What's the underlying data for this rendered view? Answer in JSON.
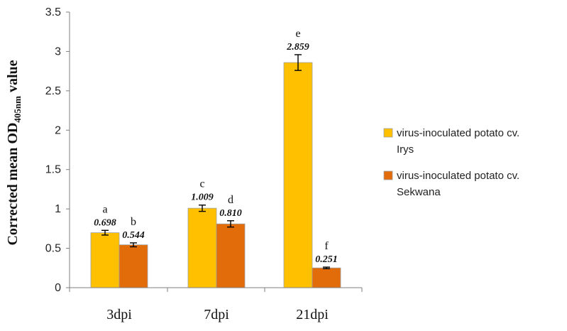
{
  "chart_data": {
    "type": "bar",
    "title": "",
    "xlabel": "",
    "ylabel": {
      "prefix": "Corrected mean OD",
      "subscript": "405nm",
      "suffix": " value"
    },
    "ylim": [
      0,
      3.5
    ],
    "yticks": [
      "0",
      "0.5",
      "1",
      "1.5",
      "2",
      "2.5",
      "3",
      "3.5"
    ],
    "categories": [
      "3dpi",
      "7dpi",
      "21dpi"
    ],
    "series": [
      {
        "name": "virus-inoculated potato cv. Irys",
        "legend_lines": [
          "virus-inoculated potato cv.",
          "Irys"
        ],
        "color": "#FFC000",
        "values": [
          0.698,
          1.009,
          2.859
        ],
        "value_labels": [
          "0.698",
          "1.009",
          "2.859"
        ],
        "errors": [
          0.03,
          0.04,
          0.1
        ],
        "letters": [
          "a",
          "c",
          "e"
        ]
      },
      {
        "name": "virus-inoculated potato cv. Sekwana",
        "legend_lines": [
          "virus-inoculated potato cv.",
          "Sekwana"
        ],
        "color": "#E36C0A",
        "values": [
          0.544,
          0.81,
          0.251
        ],
        "value_labels": [
          "0.544",
          "0.810",
          "0.251"
        ],
        "errors": [
          0.025,
          0.04,
          0.01
        ],
        "letters": [
          "b",
          "d",
          "f"
        ]
      }
    ],
    "legend_position": "right",
    "grid": false
  }
}
